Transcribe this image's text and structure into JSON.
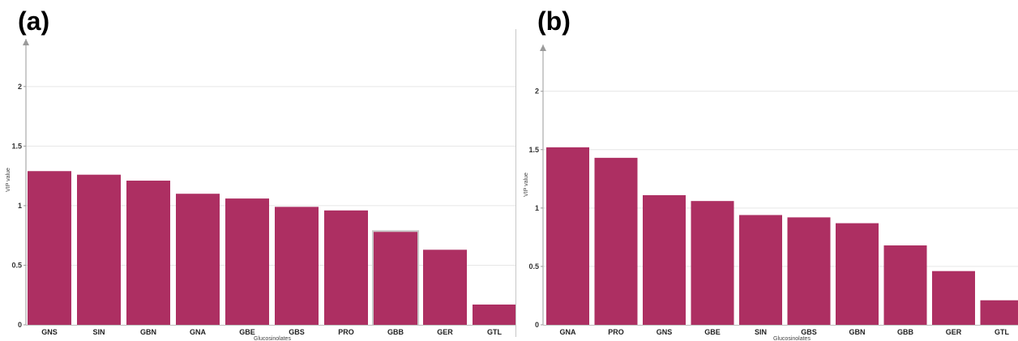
{
  "colors": {
    "bar": "#AD2F62",
    "grid": "#e6e6e6",
    "axis": "#9a9a9a",
    "highlight": "#c8c8c8"
  },
  "chart_data": [
    {
      "type": "bar",
      "panel_label": "(a)",
      "title": "",
      "xlabel": "Glucosinolates",
      "ylabel": "VIP value",
      "ylim": [
        0,
        2.4
      ],
      "yticks": [
        "0",
        "0.5",
        "1",
        "1.5",
        "2"
      ],
      "grid": true,
      "categories": [
        "GNS",
        "SIN",
        "GBN",
        "GNA",
        "GBE",
        "GBS",
        "PRO",
        "GBB",
        "GER",
        "GTL"
      ],
      "values": [
        1.29,
        1.26,
        1.21,
        1.1,
        1.06,
        0.99,
        0.96,
        0.78,
        0.63,
        0.17
      ],
      "highlighted_category": "GBB"
    },
    {
      "type": "bar",
      "panel_label": "(b)",
      "title": "",
      "xlabel": "Glucosinolates",
      "ylabel": "VIP value",
      "ylim": [
        0,
        2.4
      ],
      "yticks": [
        "0",
        "0.5",
        "1",
        "1.5",
        "2"
      ],
      "grid": true,
      "categories": [
        "GNA",
        "PRO",
        "GNS",
        "GBE",
        "SIN",
        "GBS",
        "GBN",
        "GBB",
        "GER",
        "GTL"
      ],
      "values": [
        1.52,
        1.43,
        1.11,
        1.06,
        0.94,
        0.92,
        0.87,
        0.68,
        0.46,
        0.21
      ]
    }
  ]
}
